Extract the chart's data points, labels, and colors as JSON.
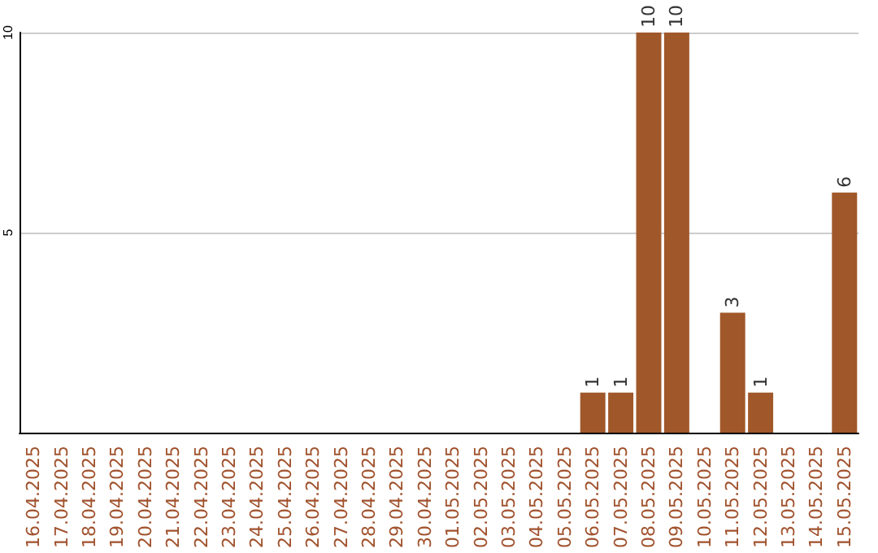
{
  "chart_data": {
    "type": "bar",
    "categories": [
      "16.04.2025",
      "17.04.2025",
      "18.04.2025",
      "19.04.2025",
      "20.04.2025",
      "21.04.2025",
      "22.04.2025",
      "23.04.2025",
      "24.04.2025",
      "25.04.2025",
      "26.04.2025",
      "27.04.2025",
      "28.04.2025",
      "29.04.2025",
      "30.04.2025",
      "01.05.2025",
      "02.05.2025",
      "03.05.2025",
      "04.05.2025",
      "05.05.2025",
      "06.05.2025",
      "07.05.2025",
      "08.05.2025",
      "09.05.2025",
      "10.05.2025",
      "11.05.2025",
      "12.05.2025",
      "13.05.2025",
      "14.05.2025",
      "15.05.2025"
    ],
    "values": [
      0,
      0,
      0,
      0,
      0,
      0,
      0,
      0,
      0,
      0,
      0,
      0,
      0,
      0,
      0,
      0,
      0,
      0,
      0,
      0,
      1,
      1,
      10,
      10,
      0,
      3,
      1,
      0,
      0,
      6
    ],
    "value_labels": [
      null,
      null,
      null,
      null,
      null,
      null,
      null,
      null,
      null,
      null,
      null,
      null,
      null,
      null,
      null,
      null,
      null,
      null,
      null,
      null,
      "1",
      "1",
      "10",
      "10",
      null,
      "3",
      "1",
      null,
      null,
      "6"
    ],
    "color": "#a0582a",
    "ylim": [
      0,
      10
    ],
    "yticks": [
      5,
      10
    ],
    "grid": "y"
  }
}
